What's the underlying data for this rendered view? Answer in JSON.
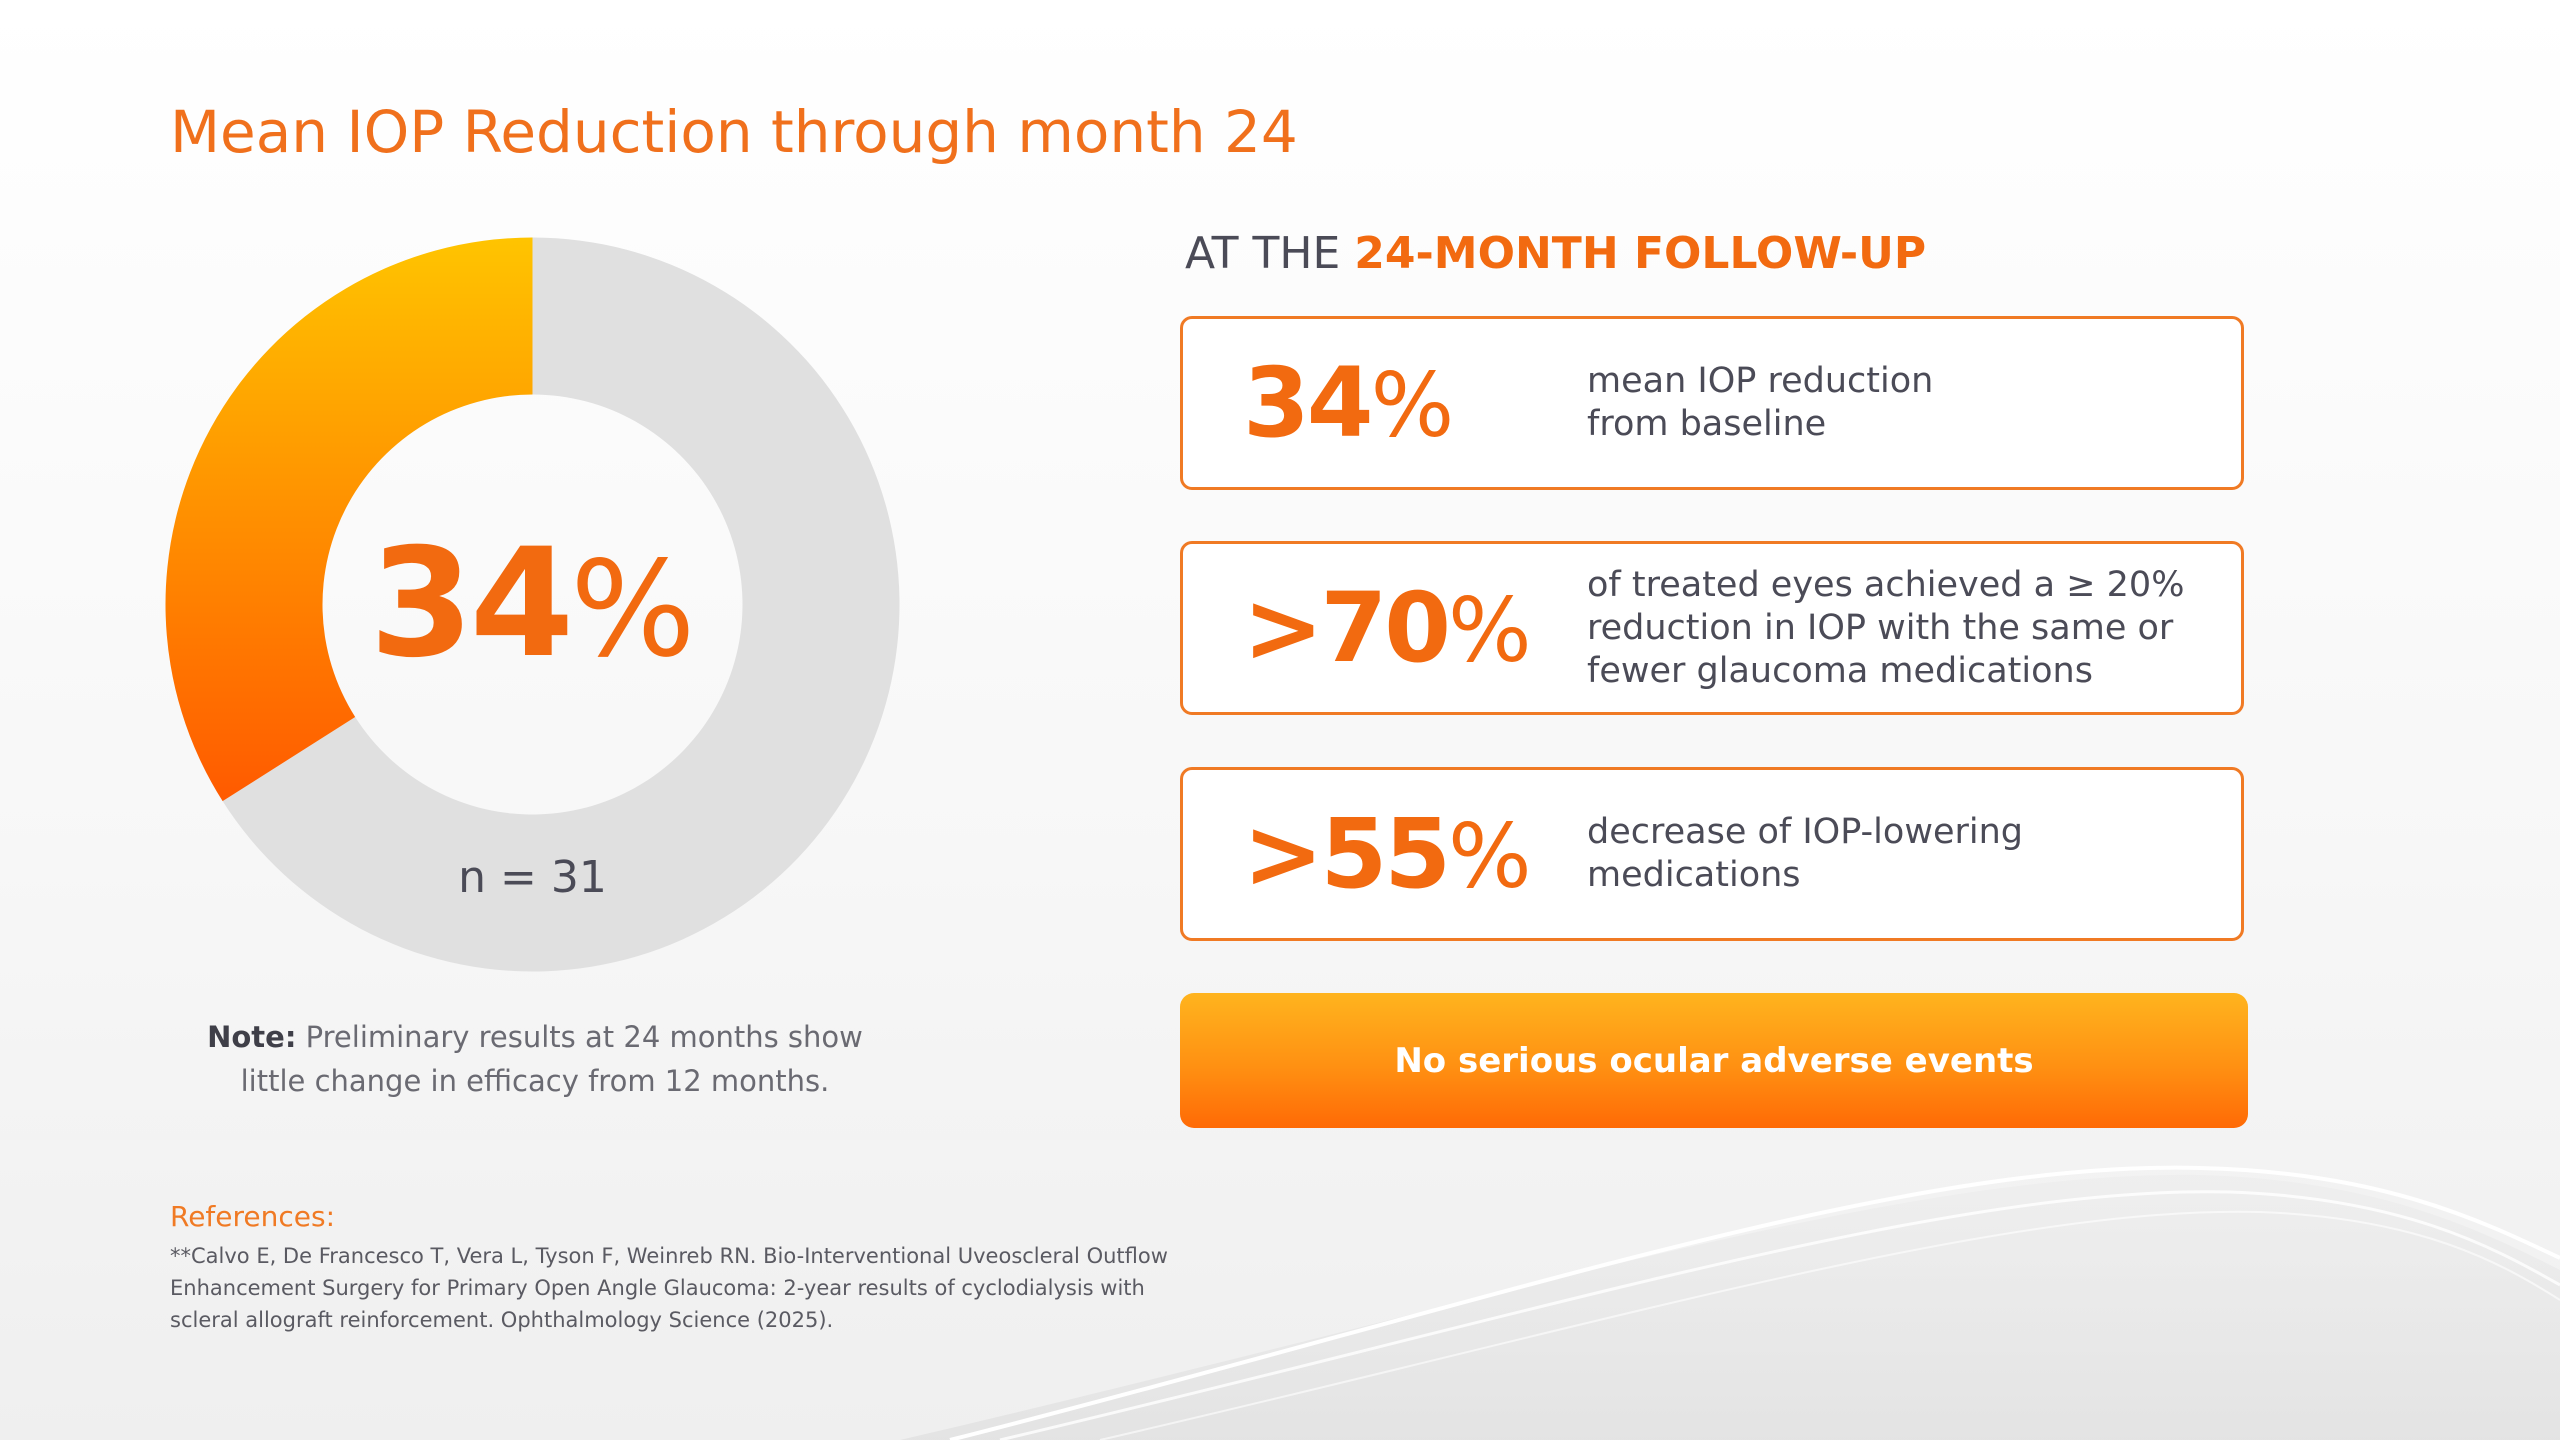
{
  "title": "Mean IOP Reduction through month 24",
  "chart_data": {
    "type": "pie",
    "values": [
      34,
      66
    ],
    "center_value": "34",
    "center_unit": "%",
    "sample_label": "n = 31",
    "colors": {
      "highlight_start": "#ffc400",
      "highlight_end": "#ff5a00",
      "remainder": "#e0e0e0"
    }
  },
  "note": {
    "label": "Note:",
    "text": "Preliminary results at 24 months show little change in efficacy from 12 months."
  },
  "followup": {
    "prefix": "AT THE ",
    "accent": "24-MONTH FOLLOW-UP"
  },
  "stats": [
    {
      "value": "34",
      "unit": "%",
      "description": "mean IOP reduction from baseline"
    },
    {
      "value": ">70",
      "unit": "%",
      "description": "of treated eyes achieved a ≥ 20% reduction in IOP with the same or fewer glaucoma medications"
    },
    {
      "value": ">55",
      "unit": "%",
      "description": "decrease of IOP-lowering medications"
    }
  ],
  "banner": "No serious ocular adverse events",
  "references": {
    "heading": "References:",
    "text": "**Calvo E, De Francesco T, Vera L, Tyson F, Weinreb RN. Bio-Interventional Uveoscleral Outflow Enhancement Surgery for Primary Open Angle Glaucoma: 2-year results of cyclodialysis with scleral allograft reinforcement. Ophthalmology Science (2025)."
  },
  "colors": {
    "accent": "#f26a10",
    "border": "#f07a24",
    "text": "#4b4b57"
  }
}
